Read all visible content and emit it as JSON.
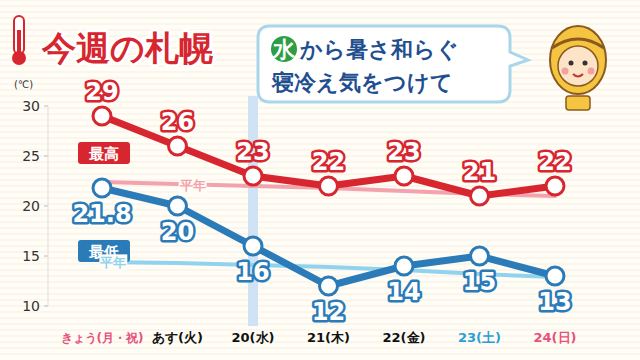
{
  "chart_data": {
    "type": "line",
    "title": "今週の札幌",
    "annotations": [
      "水から暑さ和らぐ",
      "寝冷え気をつけて"
    ],
    "ylabel": "(℃)",
    "categories": [
      "きょう(月・祝)",
      "あす(火)",
      "20(水)",
      "21(木)",
      "22(金)",
      "23(土)",
      "24(日)"
    ],
    "series": [
      {
        "name": "最高",
        "color": "#d7262f",
        "values": [
          29,
          26,
          23,
          22,
          23,
          21,
          22
        ],
        "marker": "circle",
        "data_labels": true
      },
      {
        "name": "最低",
        "color": "#2a7bb8",
        "values": [
          21.8,
          20,
          16,
          12,
          14,
          15,
          13
        ],
        "marker": "circle",
        "data_labels": true
      },
      {
        "name": "平年",
        "color": "#f2a3ad",
        "values": [
          22.4,
          22.2,
          22.0,
          21.8,
          21.5,
          21.2,
          21.0
        ],
        "marker": "none",
        "data_labels": false
      },
      {
        "name": "平年",
        "color": "#8fd3ee",
        "values": [
          14.4,
          14.3,
          14.1,
          13.9,
          13.6,
          13.2,
          12.9
        ],
        "marker": "none",
        "data_labels": false
      }
    ],
    "ylim": [
      10,
      30
    ],
    "yticks": [
      10,
      15,
      20,
      25,
      30
    ],
    "grid": false
  }
}
